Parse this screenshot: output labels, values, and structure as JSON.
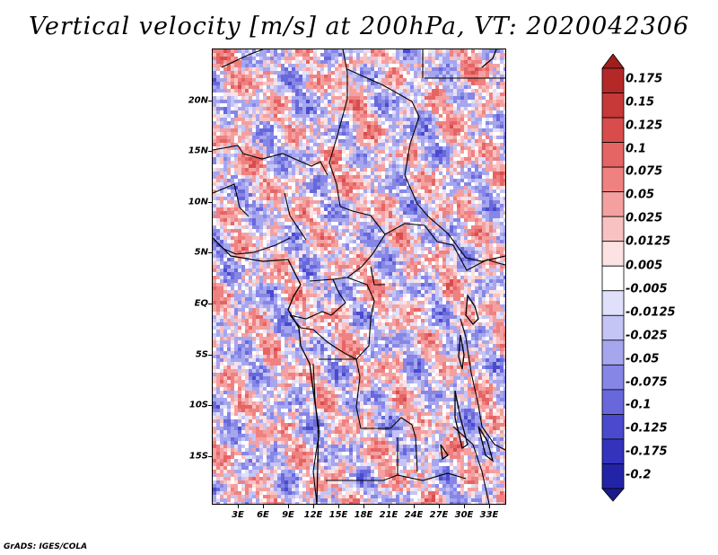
{
  "title": "Vertical velocity [m/s] at 200hPa, VT: 2020042306",
  "credit": "GrADS: IGES/COLA",
  "map": {
    "variable": "Vertical velocity",
    "units": "m/s",
    "level": "200hPa",
    "valid_time": "2020042306",
    "lat_labels": [
      "20N",
      "15N",
      "10N",
      "5N",
      "EQ",
      "5S",
      "10S",
      "15S"
    ],
    "lon_labels": [
      "3E",
      "6E",
      "9E",
      "12E",
      "15E",
      "18E",
      "21E",
      "24E",
      "27E",
      "30E",
      "33E"
    ],
    "colors": {
      "neg_mid": "#8c8cef",
      "pos_mid": "#ee7d78",
      "border": "#000000"
    }
  },
  "colorbar": {
    "labels": [
      "0.175",
      "0.15",
      "0.125",
      "0.1",
      "0.075",
      "0.05",
      "0.025",
      "0.0125",
      "0.005",
      "-0.005",
      "-0.0125",
      "-0.025",
      "-0.05",
      "-0.075",
      "-0.1",
      "-0.125",
      "-0.175",
      "-0.2"
    ],
    "colors": [
      "#a11e1e",
      "#b42828",
      "#c73838",
      "#d84c4c",
      "#e56464",
      "#ef8181",
      "#f4a0a0",
      "#f8c2c2",
      "#fce2e2",
      "#ffffff",
      "#e0e0fb",
      "#c4c4f5",
      "#a6a6ef",
      "#8686e6",
      "#6868dc",
      "#4a4acf",
      "#3333bd",
      "#2323a7",
      "#1a1a8c"
    ]
  }
}
